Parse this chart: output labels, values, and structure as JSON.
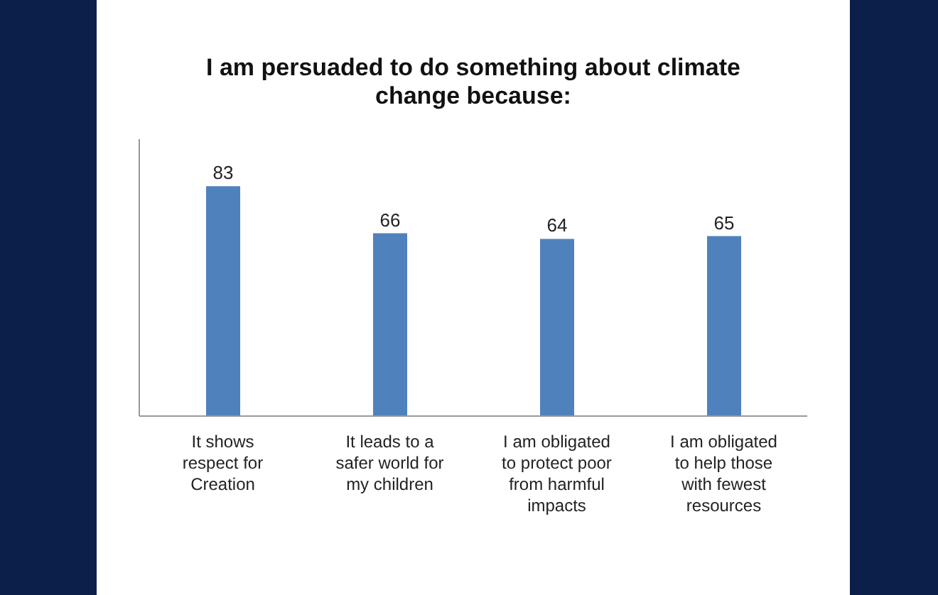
{
  "chart_data": {
    "type": "bar",
    "title": "I am persuaded to do something about climate change because:",
    "categories": [
      "It shows respect for Creation",
      "It leads to a safer world for my children",
      "I am obligated to protect poor from harmful impacts",
      "I am obligated to help those with fewest resources"
    ],
    "values": [
      83,
      66,
      64,
      65
    ],
    "color": "#4f81bd",
    "data_labels": true,
    "tick_labels": "x"
  }
}
